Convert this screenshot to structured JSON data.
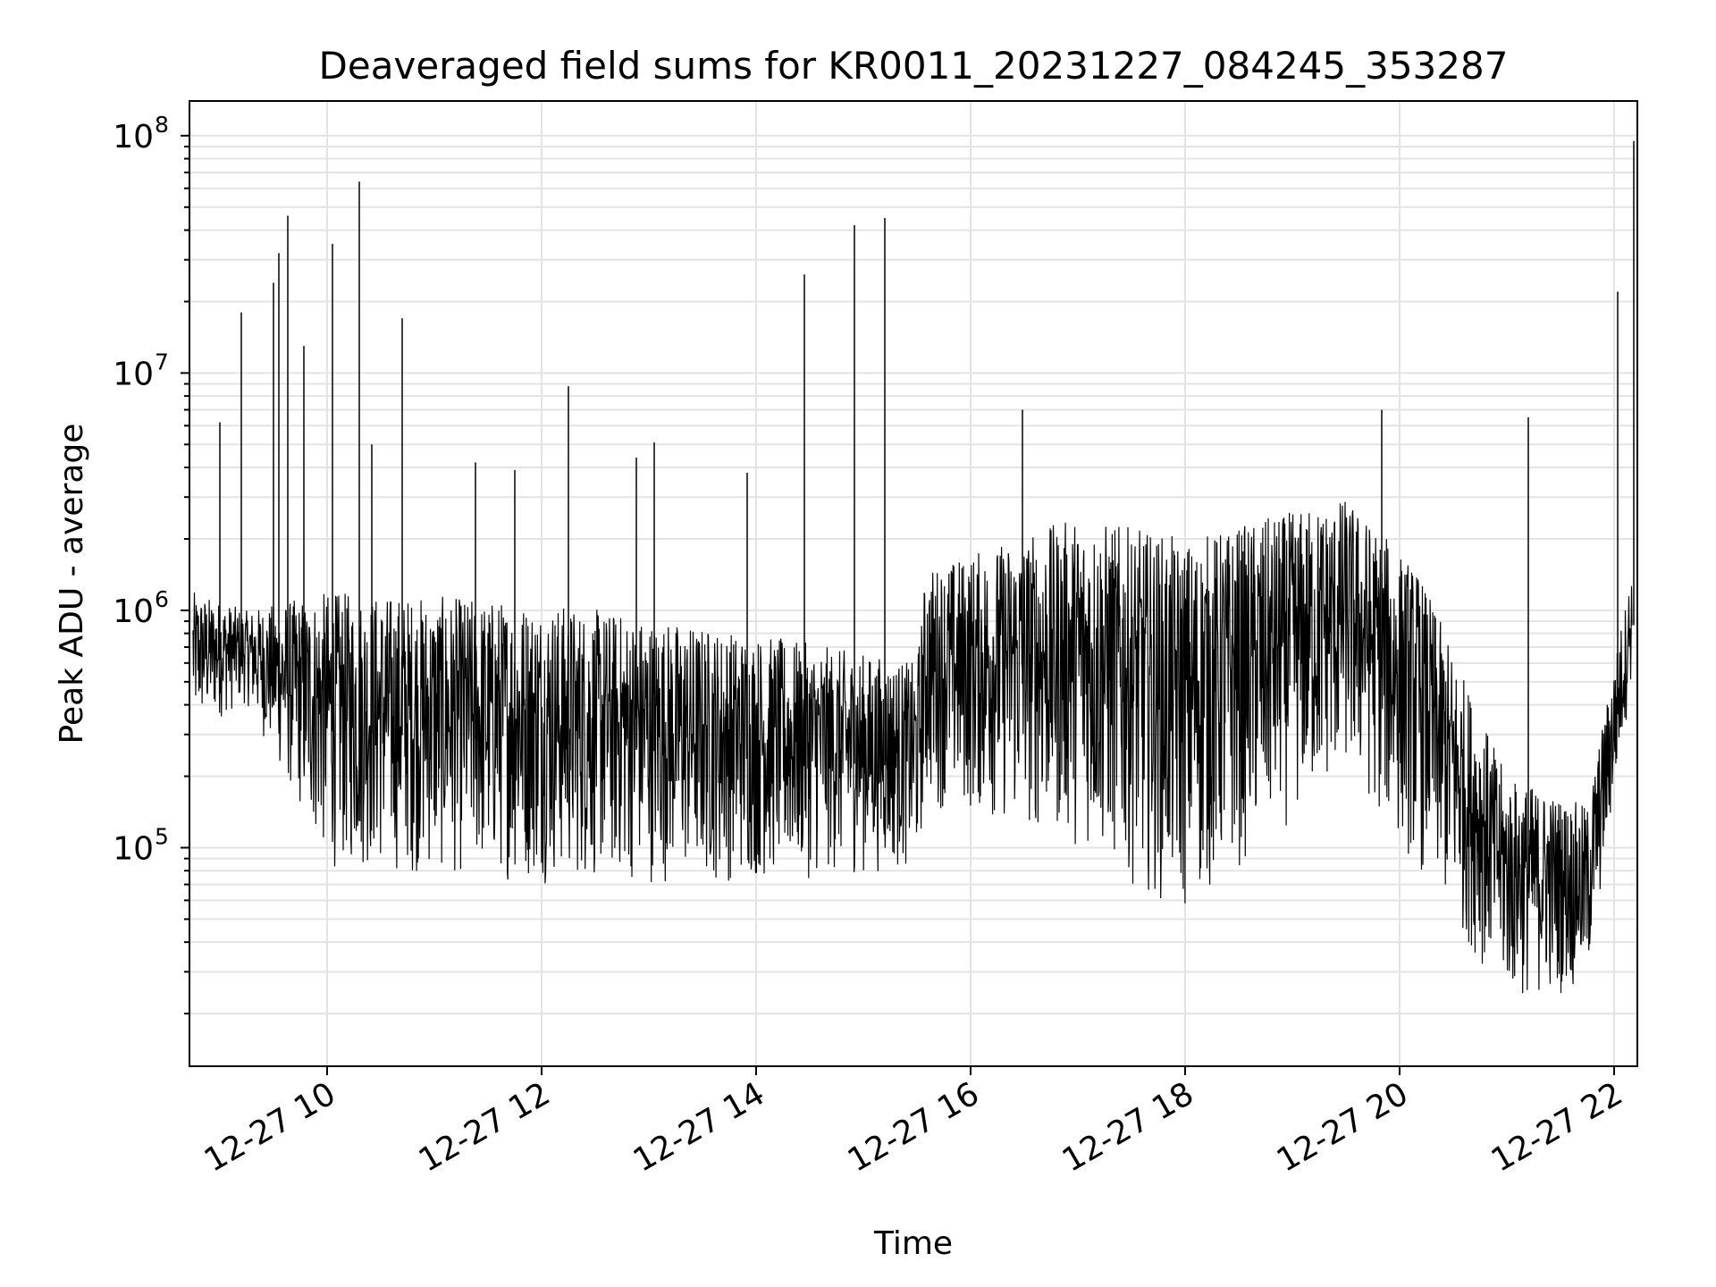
{
  "chart_data": {
    "type": "line",
    "title": "Deaveraged field sums for KR0011_20231227_084245_353287",
    "xlabel": "Time",
    "ylabel": "Peak ADU - average",
    "yscale": "log",
    "ylim": [
      12000,
      140000000
    ],
    "xlim": [
      "2023-12-27T08:43",
      "2023-12-27T22:13"
    ],
    "grid": true,
    "line_color": "#000000",
    "x_tick_labels": [
      "12-27 10",
      "12-27 12",
      "12-27 14",
      "12-27 16",
      "12-27 18",
      "12-27 20",
      "12-27 22"
    ],
    "y_tick_labels": [
      {
        "value": 100000,
        "base": "10",
        "exp": "5"
      },
      {
        "value": 1000000,
        "base": "10",
        "exp": "6"
      },
      {
        "value": 10000000,
        "base": "10",
        "exp": "7"
      },
      {
        "value": 100000000,
        "base": "10",
        "exp": "8"
      }
    ],
    "series": [
      {
        "values_description": "envelope of the dense trace (baseline band low/high per period)",
        "envelope": [
          {
            "x": "2023-12-27T08:45",
            "low": 300000,
            "high": 1200000
          },
          {
            "x": "2023-12-27T09:15",
            "low": 400000,
            "high": 1000000
          },
          {
            "x": "2023-12-27T10:00",
            "low": 80000,
            "high": 1200000
          },
          {
            "x": "2023-12-27T12:00",
            "low": 70000,
            "high": 1100000
          },
          {
            "x": "2023-12-27T14:00",
            "low": 70000,
            "high": 800000
          },
          {
            "x": "2023-12-27T15:30",
            "low": 80000,
            "high": 600000
          },
          {
            "x": "2023-12-27T15:35",
            "low": 150000,
            "high": 1500000
          },
          {
            "x": "2023-12-27T17:00",
            "low": 100000,
            "high": 2500000
          },
          {
            "x": "2023-12-27T18:00",
            "low": 50000,
            "high": 2000000
          },
          {
            "x": "2023-12-27T19:30",
            "low": 200000,
            "high": 3000000
          },
          {
            "x": "2023-12-27T20:10",
            "low": 80000,
            "high": 1500000
          },
          {
            "x": "2023-12-27T21:00",
            "low": 22000,
            "high": 200000
          },
          {
            "x": "2023-12-27T21:45",
            "low": 25000,
            "high": 150000
          },
          {
            "x": "2023-12-27T22:10",
            "low": 500000,
            "high": 1500000
          }
        ],
        "spikes": [
          {
            "x": "2023-12-27T09:00",
            "y": 6200000
          },
          {
            "x": "2023-12-27T09:12",
            "y": 18000000
          },
          {
            "x": "2023-12-27T09:30",
            "y": 24000000
          },
          {
            "x": "2023-12-27T09:33",
            "y": 32000000
          },
          {
            "x": "2023-12-27T09:38",
            "y": 46000000
          },
          {
            "x": "2023-12-27T09:47",
            "y": 13000000
          },
          {
            "x": "2023-12-27T10:03",
            "y": 35000000
          },
          {
            "x": "2023-12-27T10:18",
            "y": 64000000
          },
          {
            "x": "2023-12-27T10:25",
            "y": 5000000
          },
          {
            "x": "2023-12-27T10:42",
            "y": 17000000
          },
          {
            "x": "2023-12-27T11:23",
            "y": 4200000
          },
          {
            "x": "2023-12-27T11:45",
            "y": 3900000
          },
          {
            "x": "2023-12-27T12:15",
            "y": 8800000
          },
          {
            "x": "2023-12-27T12:53",
            "y": 4400000
          },
          {
            "x": "2023-12-27T13:03",
            "y": 5100000
          },
          {
            "x": "2023-12-27T13:55",
            "y": 3800000
          },
          {
            "x": "2023-12-27T14:27",
            "y": 26000000
          },
          {
            "x": "2023-12-27T14:55",
            "y": 42000000
          },
          {
            "x": "2023-12-27T15:12",
            "y": 45000000
          },
          {
            "x": "2023-12-27T16:29",
            "y": 7000000
          },
          {
            "x": "2023-12-27T19:50",
            "y": 7000000
          },
          {
            "x": "2023-12-27T21:12",
            "y": 6500000
          },
          {
            "x": "2023-12-27T22:02",
            "y": 22000000
          },
          {
            "x": "2023-12-27T22:11",
            "y": 95000000
          }
        ]
      }
    ]
  }
}
